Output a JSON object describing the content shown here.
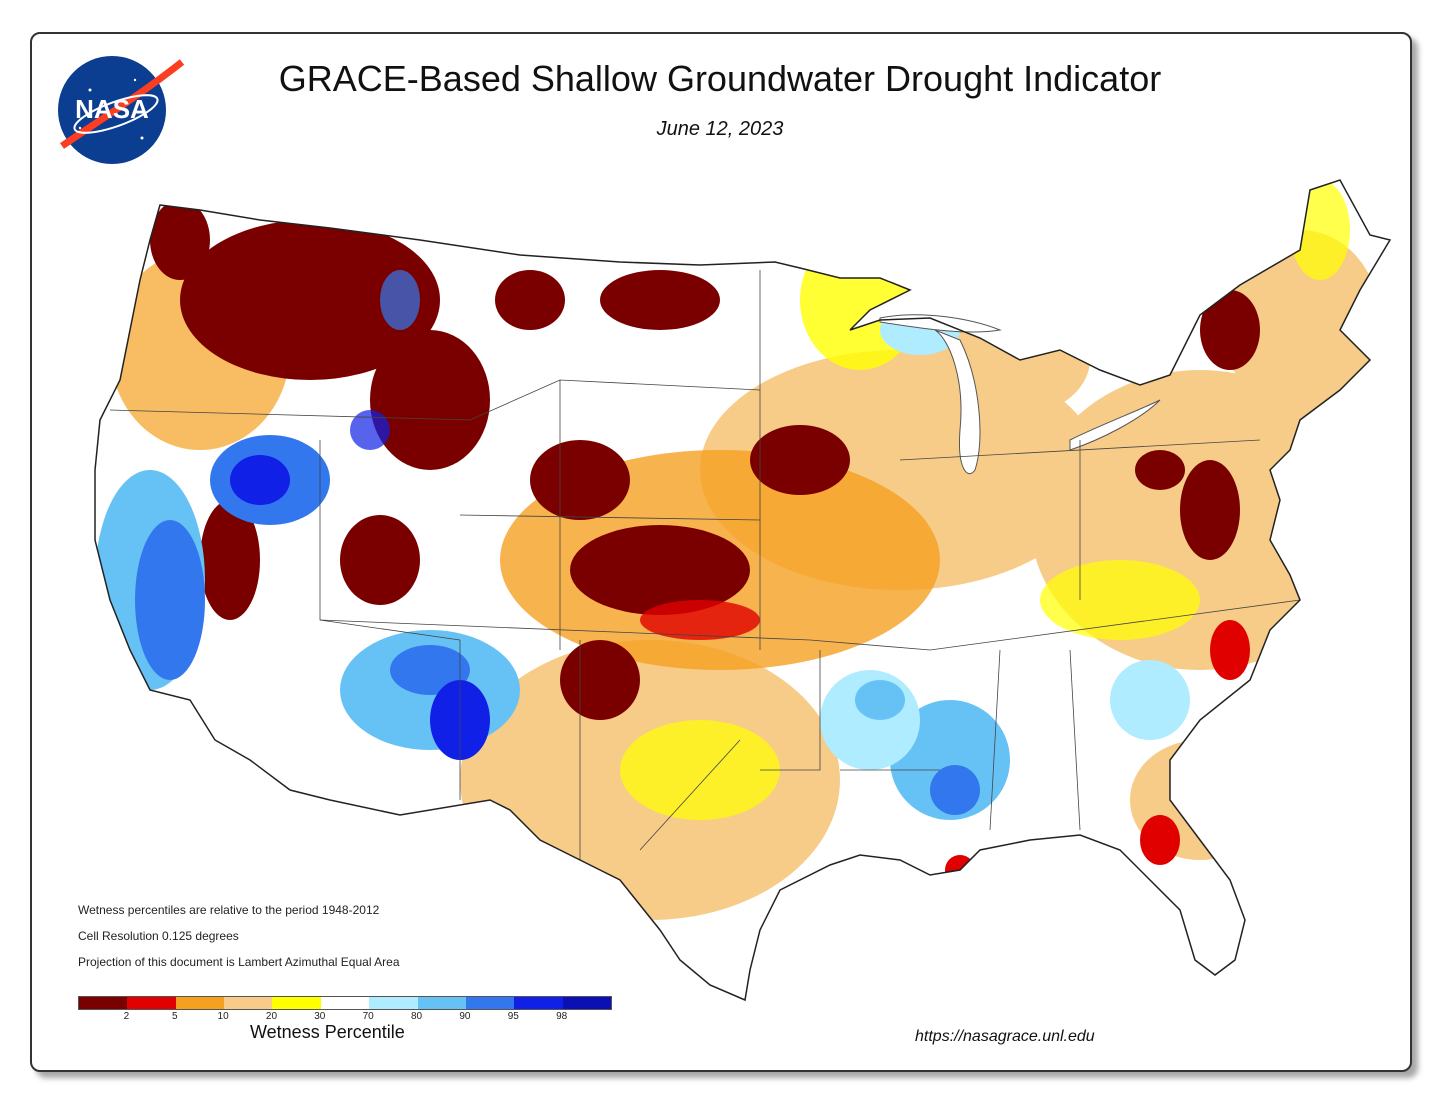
{
  "header": {
    "title": "GRACE-Based Shallow Groundwater Drought Indicator",
    "date": "June 12, 2023",
    "logo_text": "NASA"
  },
  "notes": [
    "Wetness percentiles are relative to the period 1948-2012",
    "Cell Resolution 0.125 degrees",
    "Projection of this document is Lambert Azimuthal Equal Area"
  ],
  "legend": {
    "title": "Wetness Percentile",
    "tick_labels": [
      "2",
      "5",
      "10",
      "20",
      "30",
      "70",
      "80",
      "90",
      "95",
      "98"
    ],
    "colors": [
      "#7a0000",
      "#e00000",
      "#f5a020",
      "#f7cc88",
      "#ffff00",
      "#ffffff",
      "#b0ecff",
      "#66c2f5",
      "#3377ee",
      "#1020e6",
      "#0a10b4"
    ]
  },
  "footer": {
    "url": "https://nasagrace.unl.edu"
  },
  "colors": {
    "extreme_dry": "#7a0000",
    "very_dry": "#e00000",
    "dry": "#f5a020",
    "moderately_dry": "#f7cc88",
    "slightly_dry": "#ffff00",
    "normal": "#ffffff",
    "wet": "#66c2f5",
    "very_wet": "#1020e6"
  }
}
